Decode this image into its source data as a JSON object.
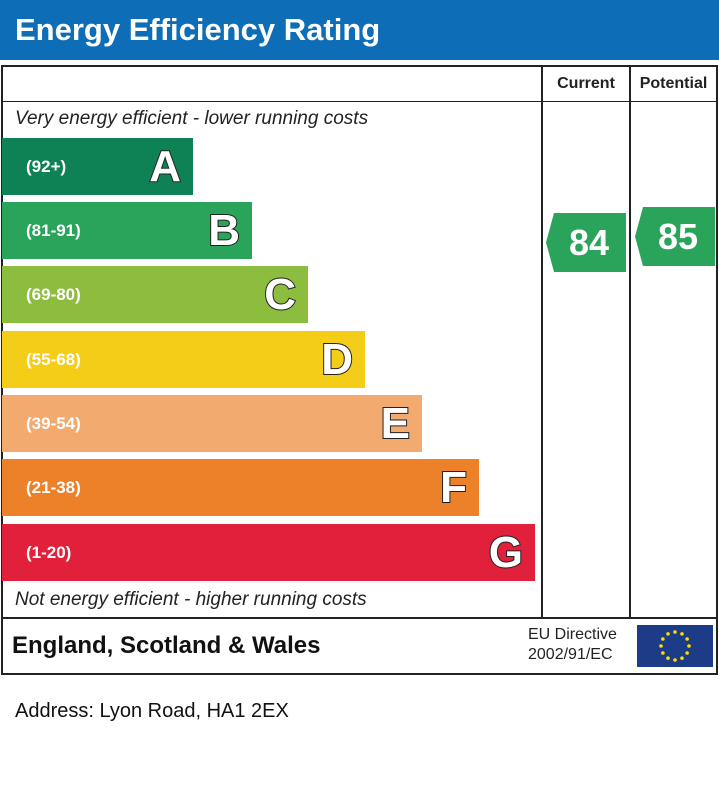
{
  "title": "Energy Efficiency Rating",
  "columns": {
    "current": "Current",
    "potential": "Potential"
  },
  "top_note": "Very energy efficient - lower running costs",
  "bottom_note": "Not energy efficient - higher running costs",
  "chart_data": {
    "type": "bar",
    "categories": [
      "A",
      "B",
      "C",
      "D",
      "E",
      "F",
      "G"
    ],
    "ranges": [
      "(92+)",
      "(81-91)",
      "(69-80)",
      "(55-68)",
      "(39-54)",
      "(21-38)",
      "(1-20)"
    ],
    "colors": [
      "#0f8255",
      "#2aa45a",
      "#8dbd3f",
      "#f4cd19",
      "#f2aa6e",
      "#ec8129",
      "#e1203c"
    ],
    "current": 84,
    "potential": 85,
    "current_band": "B",
    "potential_band": "B"
  },
  "footer": {
    "country": "England, Scotland & Wales",
    "directive_line1": "EU Directive",
    "directive_line2": "2002/91/EC",
    "flag_icon": "eu-flag"
  },
  "address": "Address: Lyon Road, HA1 2EX"
}
